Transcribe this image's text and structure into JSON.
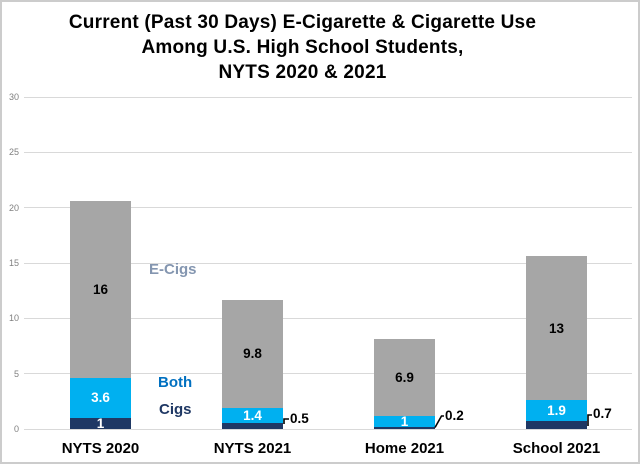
{
  "title": {
    "line1": "Current (Past 30 Days) E-Cigarette & Cigarette Use",
    "line2": "Among U.S. High School Students,",
    "line3": "NYTS 2020 & 2021"
  },
  "legend": {
    "ecigs_label": "E-Cigs",
    "both_label": "Both",
    "cigs_label": "Cigs"
  },
  "colors": {
    "ecigs_fill": "#A6A6A6",
    "both_fill": "#00B0F0",
    "cigs_fill": "#1F3864",
    "ecigs_text": "#8496B0",
    "both_text": "#0070C0",
    "cigs_text": "#1F3864",
    "gridline": "#D9D9D9",
    "axis_tick_text": "#7F7F7F",
    "inside_label_on_gray": "#000000",
    "inside_label_on_blue": "#FFFFFF"
  },
  "chart_data": {
    "type": "bar",
    "stacked": true,
    "title": "Current (Past 30 Days) E-Cigarette & Cigarette Use Among U.S. High School Students, NYTS 2020 & 2021",
    "categories": [
      "NYTS 2020",
      "NYTS 2021",
      "Home 2021",
      "School 2021"
    ],
    "series": [
      {
        "name": "Cigs",
        "color": "#1F3864",
        "values": [
          1,
          0.5,
          0.2,
          0.7
        ],
        "labels": [
          "1",
          "0.5",
          "0.2",
          "0.7"
        ],
        "label_outside": [
          false,
          true,
          true,
          true
        ],
        "label_color": "#FFFFFF"
      },
      {
        "name": "Both",
        "color": "#00B0F0",
        "values": [
          3.6,
          1.4,
          1,
          1.9
        ],
        "labels": [
          "3.6",
          "1.4",
          "1",
          "1.9"
        ],
        "label_outside": [
          false,
          false,
          false,
          false
        ],
        "label_color": "#FFFFFF"
      },
      {
        "name": "E-Cigs",
        "color": "#A6A6A6",
        "values": [
          16,
          9.8,
          6.9,
          13
        ],
        "labels": [
          "16",
          "9.8",
          "6.9",
          "13"
        ],
        "label_outside": [
          false,
          false,
          false,
          false
        ],
        "label_color": "#000000"
      }
    ],
    "totals": [
      20.6,
      11.7,
      8.1,
      15.6
    ],
    "xlabel": "",
    "ylabel": "",
    "ylim": [
      0,
      30
    ],
    "yticks": [
      0,
      5,
      10,
      15,
      20,
      25,
      30
    ],
    "grid": true,
    "legend_position": "inline-text-annotations"
  }
}
